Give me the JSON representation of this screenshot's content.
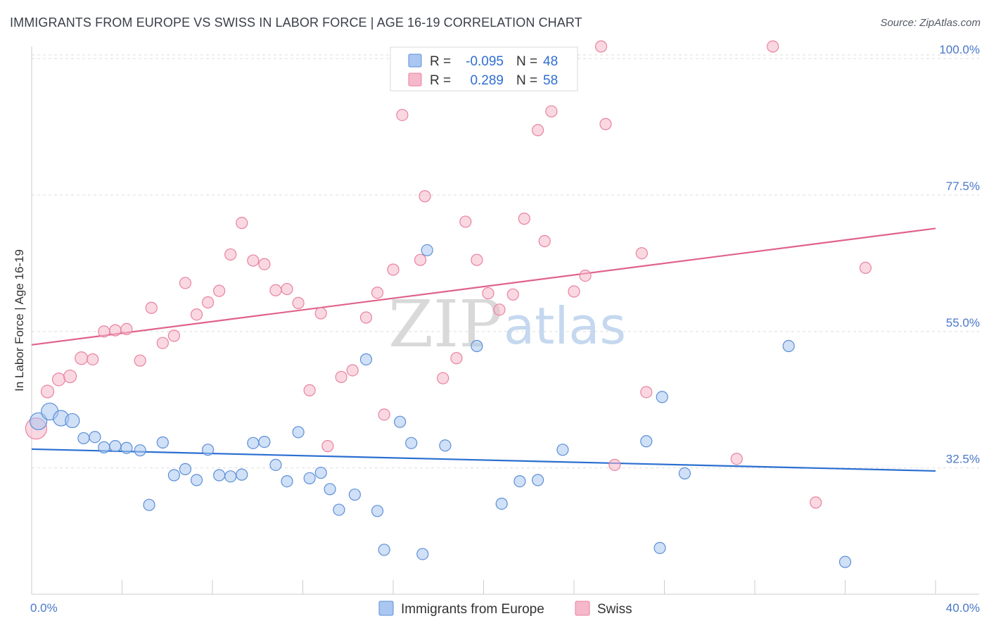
{
  "title": "IMMIGRANTS FROM EUROPE VS SWISS IN LABOR FORCE | AGE 16-19 CORRELATION CHART",
  "source": "Source: ZipAtlas.com",
  "watermark": {
    "zip": "ZIP",
    "atlas": "atlas"
  },
  "colors": {
    "blue_fill": "#a9c7f0",
    "blue_stroke": "#5b8fd6",
    "blue_line": "#2a6fd1",
    "pink_fill": "#f6b8cb",
    "pink_stroke": "#e8829f",
    "pink_line": "#e0628b",
    "tick_text": "#4a78c8",
    "grid": "#dddddd"
  },
  "legend": {
    "rows": [
      {
        "r_label": "R =",
        "r_value": "-0.095",
        "n_label": "N =",
        "n_value": "48",
        "series": "blue"
      },
      {
        "r_label": "R =",
        "r_value": "0.289",
        "n_label": "N =",
        "n_value": "58",
        "series": "pink"
      }
    ]
  },
  "chart_data": {
    "type": "scatter",
    "title": "IMMIGRANTS FROM EUROPE VS SWISS IN LABOR FORCE | AGE 16-19 CORRELATION CHART",
    "xlabel": "",
    "ylabel": "In Labor Force | Age 16-19",
    "xlim": [
      0,
      40
    ],
    "ylim": [
      14,
      102
    ],
    "x_ticks": [
      "0.0%",
      "40.0%"
    ],
    "y_ticks": [
      {
        "value": 32.5,
        "label": "32.5%"
      },
      {
        "value": 55.0,
        "label": "55.0%"
      },
      {
        "value": 77.5,
        "label": "77.5%"
      },
      {
        "value": 100.0,
        "label": "100.0%"
      }
    ],
    "grid": true,
    "legend_position": "top-center",
    "series": [
      {
        "name": "Immigrants from Europe",
        "color": "blue",
        "trend": {
          "x": [
            0,
            40
          ],
          "y": [
            35.6,
            32.0
          ]
        },
        "points": [
          {
            "x": 0.3,
            "y": 40.2,
            "s": 12
          },
          {
            "x": 0.8,
            "y": 41.8,
            "s": 12
          },
          {
            "x": 1.3,
            "y": 40.7,
            "s": 11
          },
          {
            "x": 1.8,
            "y": 40.3,
            "s": 10
          },
          {
            "x": 2.3,
            "y": 37.4,
            "s": 8
          },
          {
            "x": 2.8,
            "y": 37.6,
            "s": 8
          },
          {
            "x": 3.2,
            "y": 35.9,
            "s": 8
          },
          {
            "x": 3.7,
            "y": 36.1,
            "s": 8
          },
          {
            "x": 4.2,
            "y": 35.8,
            "s": 8
          },
          {
            "x": 4.8,
            "y": 35.4,
            "s": 8
          },
          {
            "x": 5.2,
            "y": 26.4,
            "s": 8
          },
          {
            "x": 5.8,
            "y": 36.7,
            "s": 8
          },
          {
            "x": 6.3,
            "y": 31.3,
            "s": 8
          },
          {
            "x": 6.8,
            "y": 32.3,
            "s": 8
          },
          {
            "x": 7.3,
            "y": 30.5,
            "s": 8
          },
          {
            "x": 7.8,
            "y": 35.5,
            "s": 8
          },
          {
            "x": 8.3,
            "y": 31.3,
            "s": 8
          },
          {
            "x": 8.8,
            "y": 31.1,
            "s": 8
          },
          {
            "x": 9.3,
            "y": 31.4,
            "s": 8
          },
          {
            "x": 9.8,
            "y": 36.6,
            "s": 8
          },
          {
            "x": 10.3,
            "y": 36.8,
            "s": 8
          },
          {
            "x": 10.8,
            "y": 33.0,
            "s": 8
          },
          {
            "x": 11.3,
            "y": 30.3,
            "s": 8
          },
          {
            "x": 11.8,
            "y": 38.4,
            "s": 8
          },
          {
            "x": 12.3,
            "y": 30.8,
            "s": 8
          },
          {
            "x": 12.8,
            "y": 31.7,
            "s": 8
          },
          {
            "x": 13.2,
            "y": 29.0,
            "s": 8
          },
          {
            "x": 13.6,
            "y": 25.6,
            "s": 8
          },
          {
            "x": 14.3,
            "y": 28.1,
            "s": 8
          },
          {
            "x": 14.8,
            "y": 50.4,
            "s": 8
          },
          {
            "x": 15.3,
            "y": 25.4,
            "s": 8
          },
          {
            "x": 15.6,
            "y": 19.0,
            "s": 8
          },
          {
            "x": 16.3,
            "y": 40.1,
            "s": 8
          },
          {
            "x": 16.8,
            "y": 36.6,
            "s": 8
          },
          {
            "x": 17.3,
            "y": 18.3,
            "s": 8
          },
          {
            "x": 17.5,
            "y": 68.4,
            "s": 8
          },
          {
            "x": 18.3,
            "y": 36.2,
            "s": 8
          },
          {
            "x": 19.7,
            "y": 52.6,
            "s": 8
          },
          {
            "x": 20.8,
            "y": 26.6,
            "s": 8
          },
          {
            "x": 21.6,
            "y": 30.3,
            "s": 8
          },
          {
            "x": 22.4,
            "y": 30.5,
            "s": 8
          },
          {
            "x": 23.5,
            "y": 35.5,
            "s": 8
          },
          {
            "x": 27.2,
            "y": 36.9,
            "s": 8
          },
          {
            "x": 27.8,
            "y": 19.3,
            "s": 8
          },
          {
            "x": 27.9,
            "y": 44.2,
            "s": 8
          },
          {
            "x": 28.9,
            "y": 31.6,
            "s": 8
          },
          {
            "x": 33.5,
            "y": 52.6,
            "s": 8
          },
          {
            "x": 36.0,
            "y": 17.0,
            "s": 8
          }
        ]
      },
      {
        "name": "Swiss",
        "color": "pink",
        "trend": {
          "x": [
            0,
            40
          ],
          "y": [
            52.8,
            72.0
          ]
        },
        "points": [
          {
            "x": 0.2,
            "y": 39.0,
            "s": 15
          },
          {
            "x": 0.7,
            "y": 45.1,
            "s": 9
          },
          {
            "x": 1.2,
            "y": 47.1,
            "s": 9
          },
          {
            "x": 1.7,
            "y": 47.6,
            "s": 9
          },
          {
            "x": 2.2,
            "y": 50.6,
            "s": 9
          },
          {
            "x": 2.7,
            "y": 50.4,
            "s": 8
          },
          {
            "x": 3.2,
            "y": 55.0,
            "s": 8
          },
          {
            "x": 3.7,
            "y": 55.2,
            "s": 8
          },
          {
            "x": 4.2,
            "y": 55.4,
            "s": 8
          },
          {
            "x": 4.8,
            "y": 50.2,
            "s": 8
          },
          {
            "x": 5.3,
            "y": 58.9,
            "s": 8
          },
          {
            "x": 5.8,
            "y": 53.1,
            "s": 8
          },
          {
            "x": 6.3,
            "y": 54.3,
            "s": 8
          },
          {
            "x": 6.8,
            "y": 63.0,
            "s": 8
          },
          {
            "x": 7.3,
            "y": 57.8,
            "s": 8
          },
          {
            "x": 7.8,
            "y": 59.8,
            "s": 8
          },
          {
            "x": 8.3,
            "y": 61.7,
            "s": 8
          },
          {
            "x": 8.8,
            "y": 67.7,
            "s": 8
          },
          {
            "x": 9.3,
            "y": 72.9,
            "s": 8
          },
          {
            "x": 9.8,
            "y": 66.7,
            "s": 8
          },
          {
            "x": 10.3,
            "y": 66.1,
            "s": 8
          },
          {
            "x": 10.8,
            "y": 61.8,
            "s": 8
          },
          {
            "x": 11.3,
            "y": 62.0,
            "s": 8
          },
          {
            "x": 11.8,
            "y": 59.7,
            "s": 8
          },
          {
            "x": 12.3,
            "y": 45.3,
            "s": 8
          },
          {
            "x": 12.8,
            "y": 58.0,
            "s": 8
          },
          {
            "x": 13.1,
            "y": 36.1,
            "s": 8
          },
          {
            "x": 13.7,
            "y": 47.5,
            "s": 8
          },
          {
            "x": 14.2,
            "y": 48.6,
            "s": 8
          },
          {
            "x": 14.8,
            "y": 57.3,
            "s": 8
          },
          {
            "x": 15.3,
            "y": 61.4,
            "s": 8
          },
          {
            "x": 15.6,
            "y": 41.3,
            "s": 8
          },
          {
            "x": 16.0,
            "y": 65.2,
            "s": 8
          },
          {
            "x": 16.4,
            "y": 90.7,
            "s": 8
          },
          {
            "x": 17.2,
            "y": 66.8,
            "s": 8
          },
          {
            "x": 17.4,
            "y": 77.3,
            "s": 8
          },
          {
            "x": 18.2,
            "y": 47.3,
            "s": 8
          },
          {
            "x": 18.8,
            "y": 50.6,
            "s": 8
          },
          {
            "x": 19.2,
            "y": 73.1,
            "s": 8
          },
          {
            "x": 19.7,
            "y": 66.8,
            "s": 8
          },
          {
            "x": 20.2,
            "y": 61.3,
            "s": 8
          },
          {
            "x": 20.7,
            "y": 58.6,
            "s": 8
          },
          {
            "x": 21.3,
            "y": 61.1,
            "s": 8
          },
          {
            "x": 21.8,
            "y": 73.6,
            "s": 8
          },
          {
            "x": 22.7,
            "y": 69.9,
            "s": 8
          },
          {
            "x": 22.4,
            "y": 88.2,
            "s": 8
          },
          {
            "x": 23.0,
            "y": 91.3,
            "s": 8
          },
          {
            "x": 24.0,
            "y": 61.6,
            "s": 8
          },
          {
            "x": 24.5,
            "y": 64.2,
            "s": 8
          },
          {
            "x": 25.2,
            "y": 102.0,
            "s": 8
          },
          {
            "x": 25.4,
            "y": 89.2,
            "s": 8
          },
          {
            "x": 25.8,
            "y": 33.0,
            "s": 8
          },
          {
            "x": 27.0,
            "y": 67.9,
            "s": 8
          },
          {
            "x": 27.2,
            "y": 45.0,
            "s": 8
          },
          {
            "x": 31.2,
            "y": 34.0,
            "s": 8
          },
          {
            "x": 32.8,
            "y": 102.0,
            "s": 8
          },
          {
            "x": 34.7,
            "y": 26.8,
            "s": 8
          },
          {
            "x": 36.9,
            "y": 65.5,
            "s": 8
          }
        ]
      }
    ]
  }
}
